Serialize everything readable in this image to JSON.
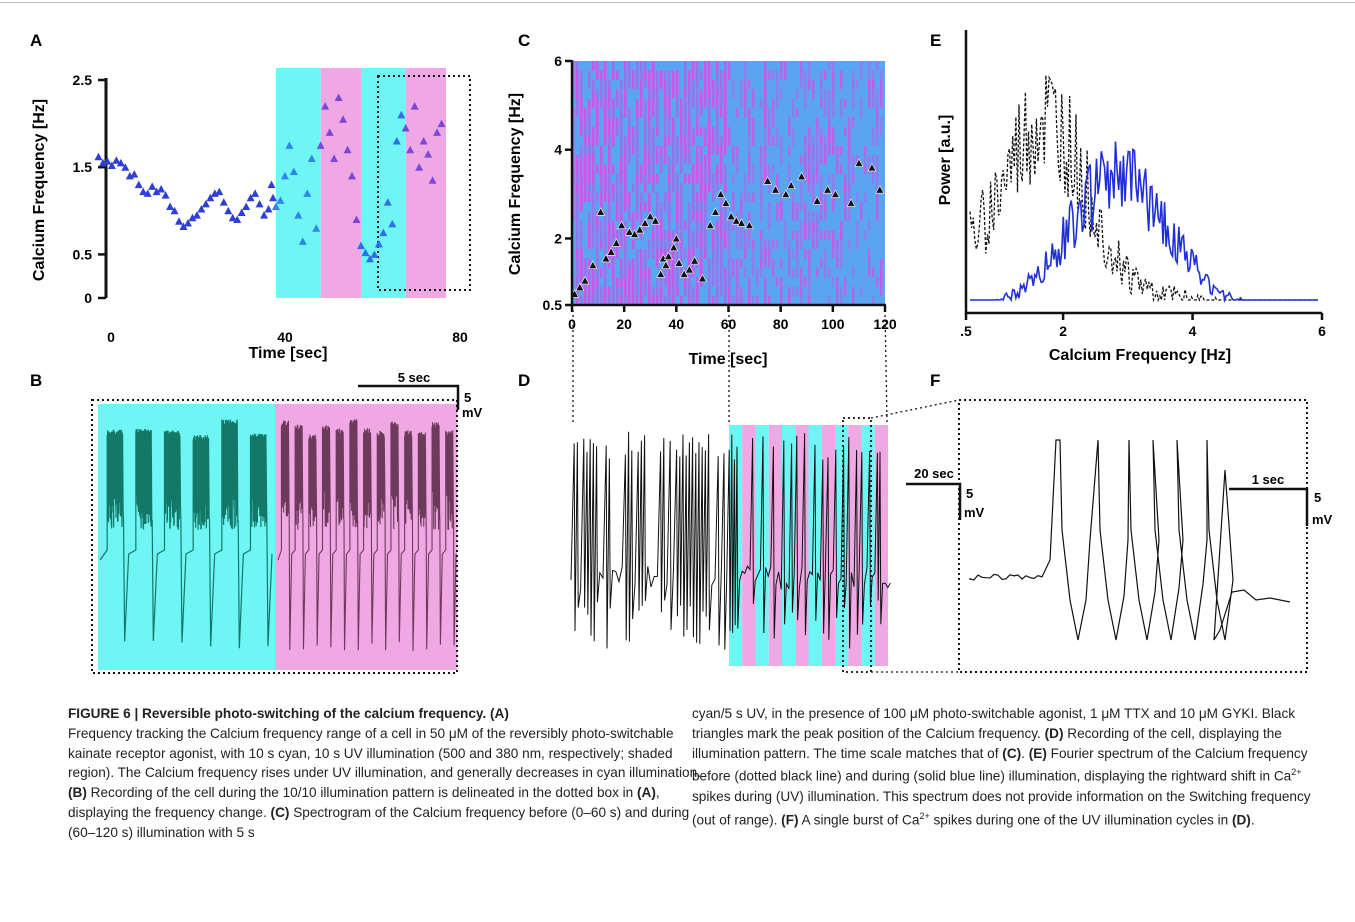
{
  "panels": {
    "a": "A",
    "b": "B",
    "c": "C",
    "d": "D",
    "e": "E",
    "f": "F"
  },
  "colors": {
    "cyan": "#6ef6f4",
    "magenta": "#f0a8e4",
    "marker_blue": "#2f3fd6",
    "spectro_blue": "#5aa4f0",
    "spectro_mag": "#d850e8",
    "trace_cyan": "#137868",
    "trace_mag": "#6e3a5c",
    "spectrum_blue": "#2030d8"
  },
  "panel_a": {
    "ylabel": "Calcium Frequency [Hz]",
    "xlabel": "Time [sec]",
    "yticks": [
      "2.5",
      "1.5",
      "0.5",
      "0"
    ],
    "xticks": [
      "0",
      "40",
      "80"
    ],
    "chart_data": {
      "type": "scatter",
      "xlabel": "Time [sec]",
      "ylabel": "Calcium Frequency [Hz]",
      "xlim": [
        0,
        80
      ],
      "ylim": [
        0,
        2.5
      ],
      "shaded": [
        {
          "from": 42,
          "to": 52,
          "color": "cyan"
        },
        {
          "from": 52,
          "to": 61,
          "color": "magenta"
        },
        {
          "from": 61,
          "to": 71,
          "color": "cyan"
        },
        {
          "from": 71,
          "to": 80,
          "color": "magenta"
        }
      ],
      "x": [
        1,
        2,
        3,
        4,
        5,
        6,
        7,
        8,
        9,
        10,
        11,
        12,
        13,
        14,
        15,
        16,
        17,
        18,
        19,
        20,
        21,
        22,
        23,
        24,
        25,
        26,
        27,
        28,
        29,
        30,
        31,
        32,
        33,
        34,
        35,
        36,
        37,
        38,
        39,
        40,
        41,
        42,
        43,
        44,
        45,
        46,
        47,
        48,
        49,
        50,
        51,
        52,
        53,
        54,
        55,
        56,
        57,
        58,
        59,
        60,
        61,
        62,
        63,
        64,
        65,
        66,
        67,
        68,
        69,
        70,
        71,
        72,
        73,
        74,
        75,
        76,
        77,
        78,
        79
      ],
      "y": [
        1.62,
        1.55,
        1.57,
        1.52,
        1.58,
        1.55,
        1.5,
        1.4,
        1.42,
        1.3,
        1.22,
        1.2,
        1.28,
        1.22,
        1.25,
        1.18,
        1.05,
        1.0,
        0.88,
        0.82,
        0.86,
        0.92,
        0.95,
        1.02,
        1.08,
        1.15,
        1.2,
        1.22,
        1.1,
        1.0,
        0.92,
        0.9,
        0.98,
        1.05,
        1.15,
        1.2,
        1.08,
        0.95,
        1.02,
        1.15,
        1.3,
        1.05,
        1.12,
        1.4,
        1.75,
        1.45,
        0.95,
        0.65,
        1.2,
        1.6,
        0.8,
        1.75,
        2.2,
        1.9,
        1.6,
        2.3,
        2.05,
        1.7,
        1.4,
        0.9,
        0.6,
        0.52,
        0.45,
        0.5,
        0.62,
        0.75,
        1.1,
        0.85,
        1.8,
        2.1,
        1.95,
        1.7,
        2.2,
        1.5,
        1.8,
        1.65,
        1.35,
        1.9,
        2.0
      ]
    }
  },
  "panel_b": {
    "scale_time": "5 sec",
    "scale_v": "5",
    "scale_unit": "mV"
  },
  "panel_c": {
    "ylabel": "Calcium Frequency [Hz]",
    "xlabel": "Time [sec]",
    "yticks": [
      "6",
      "4",
      "2",
      "0.5"
    ],
    "xticks": [
      "0",
      "20",
      "40",
      "60",
      "80",
      "100",
      "120"
    ],
    "chart_data": {
      "type": "heatmap",
      "xlim": [
        0,
        120
      ],
      "ylim": [
        0.5,
        6
      ],
      "peaks_x": [
        1,
        3,
        5,
        8,
        11,
        13,
        15,
        17,
        19,
        22,
        24,
        26,
        28,
        30,
        32,
        34,
        35,
        36,
        37,
        39,
        40,
        41,
        43,
        45,
        47,
        50,
        53,
        55,
        57,
        59,
        61,
        63,
        65,
        68,
        75,
        78,
        82,
        84,
        88,
        94,
        98,
        101,
        107,
        110,
        115,
        118
      ],
      "peaks_y": [
        0.75,
        0.9,
        1.05,
        1.4,
        2.6,
        1.55,
        1.7,
        1.9,
        2.3,
        2.15,
        2.1,
        2.2,
        2.35,
        2.5,
        2.4,
        1.2,
        1.55,
        1.4,
        1.6,
        1.8,
        2.0,
        1.45,
        1.2,
        1.3,
        1.5,
        1.1,
        2.3,
        2.6,
        3.0,
        2.8,
        2.5,
        2.4,
        2.35,
        2.3,
        3.3,
        3.1,
        3.0,
        3.2,
        3.4,
        2.85,
        3.1,
        3.0,
        2.8,
        3.7,
        3.6,
        3.1
      ]
    }
  },
  "panel_d": {
    "scale_time": "20 sec",
    "scale_v": "5",
    "scale_unit": "mV"
  },
  "panel_e": {
    "ylabel": "Power [a.u.]",
    "xlabel": "Calcium Frequency [Hz]",
    "xticks": [
      ".5",
      "2",
      "4",
      "6"
    ],
    "chart_data": {
      "type": "line",
      "xlim": [
        0.5,
        6
      ],
      "series": [
        {
          "style": "dotted black"
        },
        {
          "style": "solid blue"
        }
      ]
    }
  },
  "panel_f": {
    "scale_time": "1 sec",
    "scale_v": "5",
    "scale_unit": "mV"
  },
  "caption": {
    "title": "FIGURE 6 | Reversible photo-switching of the calcium frequency. (A)",
    "left_1": "Frequency tracking the Calcium frequency range of a cell in 50 μM of the reversibly photo-switchable kainate receptor agonist, with 10 s cyan, 10 s UV illumination (500 and 380 nm, respectively; shaded region). The Calcium frequency rises under UV illumination, and generally decreases in cyan illumination. ",
    "left_b": "(B)",
    "left_2": " Recording of the cell during the 10/10 illumination pattern is delineated in the dotted box in ",
    "left_a": "(A)",
    "left_3": ", displaying the frequency change. ",
    "left_c": "(C)",
    "left_4": " Spectrogram of the Calcium frequency before (0–60 s) and during (60–120 s) illumination with 5 s",
    "right_1": "cyan/5 s UV, in the presence of 100 μM photo-switchable agonist, 1 μM TTX and 10 μM GYKI. Black triangles mark the peak position of the Calcium frequency. ",
    "right_d": "(D)",
    "right_2": " Recording of the cell, displaying the illumination pattern. The time scale matches that of ",
    "right_c": "(C)",
    "right_3": ". ",
    "right_e": "(E)",
    "right_4": " Fourier spectrum of the Calcium frequency before (dotted black line) and during (solid blue line) illumination, displaying the rightward shift in Ca",
    "right_sup1": "2+",
    "right_5": " spikes during (UV) illumination. This spectrum does not provide information on the Switching frequency (out of range). ",
    "right_f": "(F)",
    "right_6": " A single burst of Ca",
    "right_sup2": "2+",
    "right_7": " spikes during one of the UV illumination cycles in ",
    "right_d2": "(D)",
    "right_8": "."
  }
}
